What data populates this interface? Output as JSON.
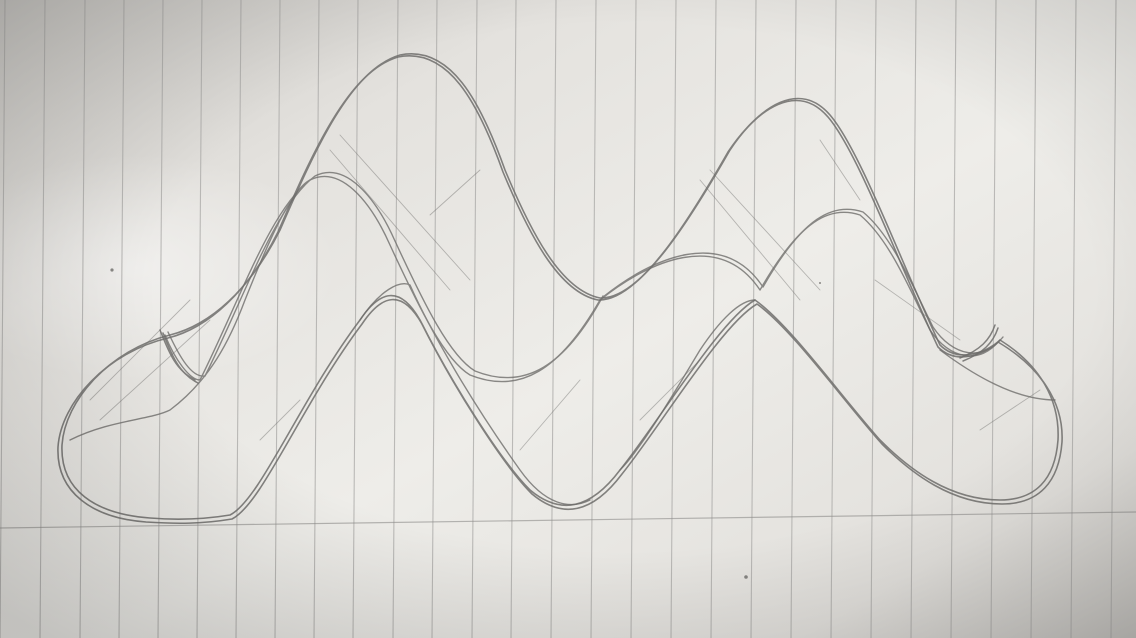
{
  "scene": {
    "subject": "pencil-sketch",
    "medium": "graphite",
    "surface": "ruled-notebook-paper",
    "colors": {
      "paper_light": "#eeede9",
      "paper_mid": "#d9d7d3",
      "paper_shadow": "#bdbbb7",
      "ruled_line": "#a9a8a6",
      "pencil": "#6f6e6c"
    }
  }
}
